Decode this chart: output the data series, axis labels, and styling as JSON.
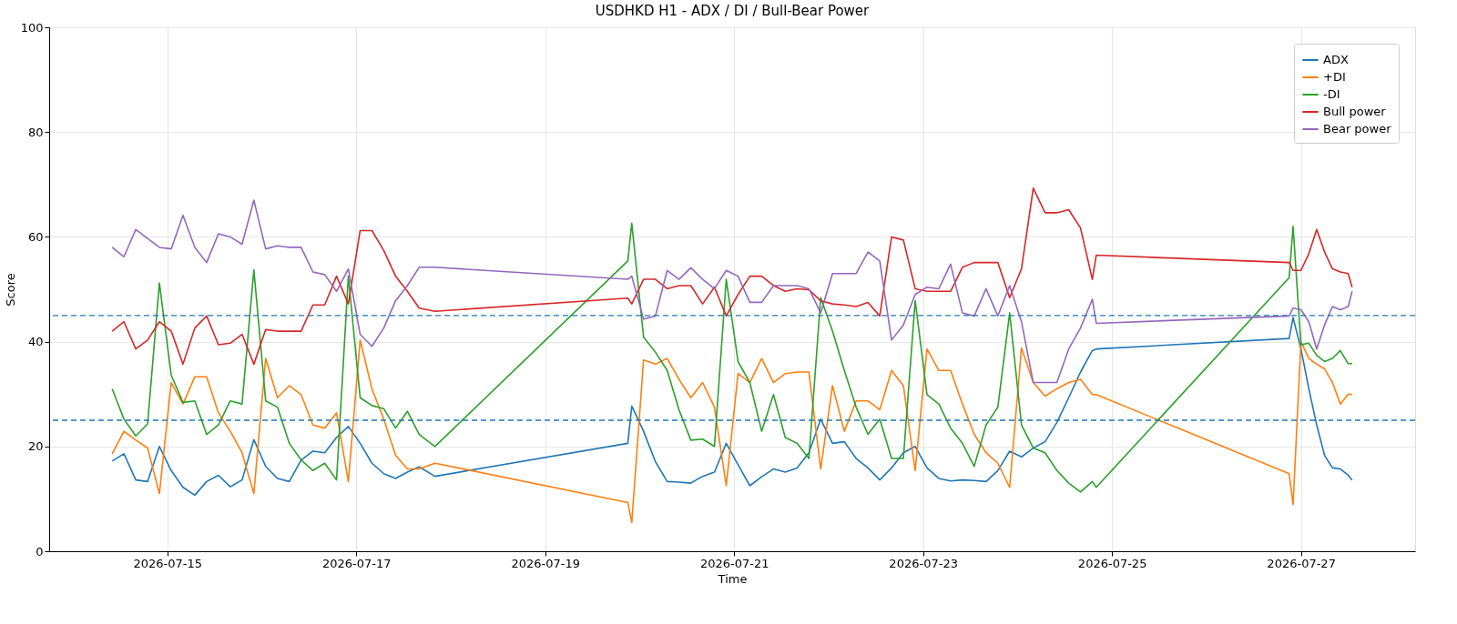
{
  "chart_data": {
    "type": "line",
    "title": "USDHKD H1 - ADX / DI / Bull-Bear Power",
    "xlabel": "Time",
    "ylabel": "Score",
    "x": [
      "2026-07-14T10:00",
      "2026-07-14T13:00",
      "2026-07-14T16:00",
      "2026-07-14T19:00",
      "2026-07-14T22:00",
      "2026-07-15T01:00",
      "2026-07-15T04:00",
      "2026-07-15T07:00",
      "2026-07-15T10:00",
      "2026-07-15T13:00",
      "2026-07-15T16:00",
      "2026-07-15T19:00",
      "2026-07-15T22:00",
      "2026-07-16T01:00",
      "2026-07-16T04:00",
      "2026-07-16T07:00",
      "2026-07-16T10:00",
      "2026-07-16T13:00",
      "2026-07-16T16:00",
      "2026-07-16T19:00",
      "2026-07-16T22:00",
      "2026-07-17T01:00",
      "2026-07-17T04:00",
      "2026-07-17T07:00",
      "2026-07-17T10:00",
      "2026-07-17T13:00",
      "2026-07-17T16:00",
      "2026-07-17T20:00",
      "2026-07-19T21:00",
      "2026-07-19T22:00",
      "2026-07-20T01:00",
      "2026-07-20T04:00",
      "2026-07-20T07:00",
      "2026-07-20T10:00",
      "2026-07-20T13:00",
      "2026-07-20T16:00",
      "2026-07-20T19:00",
      "2026-07-20T22:00",
      "2026-07-21T01:00",
      "2026-07-21T04:00",
      "2026-07-21T07:00",
      "2026-07-21T10:00",
      "2026-07-21T13:00",
      "2026-07-21T16:00",
      "2026-07-21T19:00",
      "2026-07-21T22:00",
      "2026-07-22T01:00",
      "2026-07-22T04:00",
      "2026-07-22T07:00",
      "2026-07-22T10:00",
      "2026-07-22T13:00",
      "2026-07-22T16:00",
      "2026-07-22T19:00",
      "2026-07-22T22:00",
      "2026-07-23T01:00",
      "2026-07-23T04:00",
      "2026-07-23T07:00",
      "2026-07-23T10:00",
      "2026-07-23T13:00",
      "2026-07-23T16:00",
      "2026-07-23T19:00",
      "2026-07-23T22:00",
      "2026-07-24T01:00",
      "2026-07-24T04:00",
      "2026-07-24T07:00",
      "2026-07-24T10:00",
      "2026-07-24T13:00",
      "2026-07-24T16:00",
      "2026-07-24T19:00",
      "2026-07-24T20:00",
      "2026-07-26T21:00",
      "2026-07-26T22:00",
      "2026-07-27T00:00",
      "2026-07-27T02:00",
      "2026-07-27T04:00",
      "2026-07-27T06:00",
      "2026-07-27T08:00",
      "2026-07-27T10:00",
      "2026-07-27T12:00",
      "2026-07-27T13:00"
    ],
    "series": [
      {
        "name": "ADX",
        "color": "#1f77b4",
        "values": [
          17.2,
          18.6,
          13.6,
          13.3,
          20,
          15.4,
          12.2,
          10.7,
          13.3,
          14.5,
          12.3,
          13.6,
          21.3,
          16.2,
          13.9,
          13.3,
          17.4,
          19.1,
          18.8,
          21.7,
          23.8,
          20.6,
          16.8,
          14.8,
          13.9,
          15.1,
          16.1,
          14.3,
          20.6,
          27.7,
          22.9,
          17.1,
          13.3,
          13.2,
          13,
          14.3,
          15.1,
          20.6,
          16.5,
          12.5,
          14.2,
          15.7,
          15.1,
          15.9,
          18.8,
          25.2,
          20.6,
          20.9,
          17.7,
          15.9,
          13.6,
          15.9,
          18.8,
          20,
          15.9,
          13.9,
          13.4,
          13.6,
          13.5,
          13.3,
          15.4,
          19.1,
          18,
          19.7,
          20.9,
          24.6,
          29.3,
          34.2,
          38.3,
          38.6,
          40.6,
          44.6,
          38.6,
          31,
          24.1,
          18.3,
          15.9,
          15.7,
          14.5,
          13.6
        ]
      },
      {
        "name": "+DI",
        "color": "#ff7f0e",
        "values": [
          18.6,
          22.9,
          21.2,
          19.7,
          11,
          32.2,
          28.1,
          33.3,
          33.3,
          26.4,
          22.9,
          18.8,
          11,
          36.8,
          29.3,
          31.6,
          29.9,
          24.1,
          23.5,
          26.4,
          13.3,
          40.3,
          31,
          25.2,
          18.3,
          15.7,
          15.7,
          16.8,
          9.3,
          5.5,
          36.5,
          35.7,
          36.8,
          32.8,
          29.3,
          32.2,
          27.5,
          12.5,
          33.9,
          32.2,
          36.8,
          32.2,
          33.9,
          34.2,
          34.2,
          15.7,
          31.6,
          22.9,
          28.7,
          28.7,
          27,
          34.5,
          31.6,
          15.4,
          38.6,
          34.5,
          34.5,
          28.1,
          22.3,
          18.8,
          16.8,
          12.2,
          38.8,
          32.2,
          29.6,
          31,
          32.2,
          32.8,
          29.9,
          29.9,
          14.8,
          8.9,
          40,
          36.8,
          35.7,
          34.8,
          32.2,
          28.1,
          30,
          29.9
        ]
      },
      {
        "name": "-DI",
        "color": "#2ca02c",
        "values": [
          31,
          25.2,
          22,
          24.3,
          51.2,
          33.6,
          28.4,
          28.7,
          22.3,
          24.1,
          28.7,
          28.1,
          53.7,
          28.7,
          27.5,
          20.6,
          17.4,
          15.4,
          16.8,
          13.6,
          52.5,
          29.3,
          27.8,
          27.2,
          23.5,
          26.7,
          22.3,
          20,
          55.4,
          62.6,
          40.9,
          38,
          34.5,
          27,
          21.2,
          21.4,
          20,
          51.9,
          36.2,
          32.2,
          22.9,
          29.9,
          21.7,
          20.6,
          17.7,
          48.4,
          42,
          34.5,
          27.5,
          22.3,
          25.2,
          17.7,
          17.7,
          47.8,
          29.9,
          28.1,
          23.5,
          20.6,
          16.2,
          24.1,
          27.5,
          45.5,
          24.1,
          19.7,
          18.8,
          15.4,
          13,
          11.3,
          13.3,
          12.2,
          52.2,
          62,
          39.4,
          39.7,
          37.4,
          36.2,
          36.8,
          38.3,
          35.8,
          35.8
        ]
      },
      {
        "name": "Bull power",
        "color": "#d62728",
        "values": [
          42,
          43.8,
          38.6,
          40.3,
          43.8,
          42,
          35.7,
          42.6,
          44.9,
          39.4,
          39.7,
          41.4,
          35.7,
          42.3,
          42,
          42,
          42,
          47,
          47,
          52.5,
          47.2,
          61.2,
          61.2,
          57.4,
          52.5,
          49.6,
          46.4,
          45.8,
          48.3,
          47.2,
          51.9,
          51.9,
          50.1,
          50.7,
          50.7,
          47.2,
          50.4,
          44.9,
          49,
          52.5,
          52.5,
          50.7,
          49.6,
          50.1,
          49.9,
          47.8,
          47.2,
          47,
          46.7,
          47.5,
          44.9,
          60,
          59.4,
          50.1,
          49.6,
          49.6,
          49.6,
          54.2,
          55.1,
          55.1,
          55.1,
          48.4,
          53.9,
          69.3,
          64.6,
          64.6,
          65.2,
          61.7,
          51.9,
          56.5,
          55.1,
          53.6,
          53.6,
          56.8,
          61.4,
          57.1,
          53.9,
          53.3,
          53,
          50.4
        ]
      },
      {
        "name": "Bear power",
        "color": "#9467bd",
        "values": [
          58,
          56.2,
          61.4,
          59.7,
          58,
          57.7,
          64.1,
          58,
          55.1,
          60.6,
          60,
          58.6,
          67,
          57.7,
          58.3,
          58,
          58,
          53.3,
          52.8,
          49.6,
          53.9,
          41.4,
          39.1,
          42.6,
          47.8,
          50.7,
          54.2,
          54.2,
          51.9,
          52.5,
          44.3,
          44.9,
          53.6,
          51.9,
          54.1,
          51.9,
          50.1,
          53.6,
          52.5,
          47.5,
          47.5,
          50.7,
          50.7,
          50.7,
          50.1,
          45.5,
          53,
          53,
          53,
          57.1,
          55.4,
          40.3,
          43.2,
          49,
          50.4,
          50.1,
          54.8,
          45.5,
          44.9,
          50.1,
          44.9,
          50.7,
          43.8,
          32.2,
          32.2,
          32.2,
          38.6,
          42.6,
          48.1,
          43.5,
          44.9,
          46.4,
          46.1,
          43.8,
          38.6,
          43.2,
          46.7,
          46.1,
          46.7,
          49.6
        ]
      }
    ],
    "xlim": [
      "2026-07-13T18:00",
      "2026-07-28T05:00"
    ],
    "xticks": [
      "2026-07-15",
      "2026-07-17",
      "2026-07-19",
      "2026-07-21",
      "2026-07-23",
      "2026-07-25",
      "2026-07-27"
    ],
    "ylim": [
      0,
      100
    ],
    "yticks": [
      0,
      20,
      40,
      60,
      80,
      100
    ],
    "ref_lines": [
      {
        "axis": "y",
        "value": 45,
        "color": "#1f77b4",
        "line_style": "dashed"
      },
      {
        "axis": "y",
        "value": 25,
        "color": "#1f77b4",
        "line_style": "dashed"
      }
    ],
    "grid": true,
    "legend": "top right",
    "line_style": "solid",
    "marker": "none"
  }
}
